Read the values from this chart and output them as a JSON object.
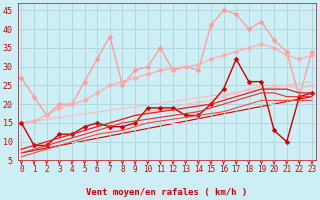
{
  "x": [
    0,
    1,
    2,
    3,
    4,
    5,
    6,
    7,
    8,
    9,
    10,
    11,
    12,
    13,
    14,
    15,
    16,
    17,
    18,
    19,
    20,
    21,
    22,
    23
  ],
  "series": [
    {
      "label": "rafales_jagged",
      "y": [
        27,
        22,
        17,
        20,
        20,
        26,
        32,
        38,
        25,
        29,
        30,
        35,
        29,
        30,
        29,
        41,
        45,
        44,
        40,
        42,
        37,
        34,
        22,
        34
      ],
      "color": "#ff9999",
      "alpha": 1.0,
      "lw": 0.9,
      "marker": "D",
      "ms": 2.5,
      "zorder": 2
    },
    {
      "label": "rafales_trend_upper",
      "y": [
        15,
        15.5,
        17,
        19,
        20,
        21,
        23,
        25,
        26,
        27,
        28,
        29,
        29.5,
        30,
        30.5,
        32,
        33,
        34,
        35,
        36,
        35,
        33,
        32,
        33
      ],
      "color": "#ffaaaa",
      "alpha": 1.0,
      "lw": 0.9,
      "marker": "D",
      "ms": 2.5,
      "zorder": 2
    },
    {
      "label": "rafales_trend_lower",
      "y": [
        8,
        9,
        10,
        11,
        12,
        13,
        14,
        15,
        16,
        17,
        18,
        18.5,
        19,
        20,
        20.5,
        21,
        22,
        23,
        24,
        25,
        25,
        25,
        24,
        25
      ],
      "color": "#ffbbbb",
      "alpha": 1.0,
      "lw": 0.8,
      "marker": "D",
      "ms": 2.0,
      "zorder": 2
    },
    {
      "label": "vent_jagged",
      "y": [
        15,
        9,
        9,
        12,
        12,
        14,
        15,
        14,
        14,
        15,
        19,
        19,
        19,
        17,
        17,
        20,
        24,
        32,
        26,
        26,
        13,
        10,
        22,
        23
      ],
      "color": "#cc0000",
      "alpha": 1.0,
      "lw": 1.0,
      "marker": "D",
      "ms": 2.5,
      "zorder": 3
    },
    {
      "label": "vent_trend1",
      "y": [
        8,
        9,
        10,
        11,
        12,
        13,
        14,
        15,
        16,
        17,
        17.5,
        18,
        18.5,
        19,
        19.5,
        20,
        21,
        22,
        23,
        24,
        24,
        24,
        23,
        23
      ],
      "color": "#dd2222",
      "alpha": 1.0,
      "lw": 0.9,
      "marker": null,
      "ms": 0,
      "zorder": 3
    },
    {
      "label": "vent_trend2",
      "y": [
        7,
        8,
        9,
        10,
        11,
        12,
        13,
        14,
        15,
        15.5,
        16,
        16.5,
        17,
        17.5,
        18,
        19,
        20,
        21,
        22,
        23,
        23,
        22,
        22,
        22
      ],
      "color": "#ee3333",
      "alpha": 1.0,
      "lw": 0.85,
      "marker": null,
      "ms": 0,
      "zorder": 3
    },
    {
      "label": "vent_trend3",
      "y": [
        6,
        7,
        8,
        9,
        10,
        11,
        12,
        12.5,
        13,
        14,
        15,
        15.5,
        16,
        16.5,
        17,
        17.5,
        18,
        19,
        20,
        21,
        21,
        21,
        21,
        21
      ],
      "color": "#ff4444",
      "alpha": 1.0,
      "lw": 0.8,
      "marker": null,
      "ms": 0,
      "zorder": 3
    }
  ],
  "diag_lines": [
    {
      "x0": 0,
      "y0": 15,
      "x1": 23,
      "y1": 26,
      "color": "#ffbbbb",
      "lw": 0.8,
      "alpha": 1.0
    },
    {
      "x0": 0,
      "y0": 7,
      "x1": 23,
      "y1": 22,
      "color": "#cc0000",
      "lw": 0.8,
      "alpha": 1.0
    }
  ],
  "xlabel": "Vent moyen/en rafales ( km/h )",
  "xlim": [
    -0.3,
    23.3
  ],
  "ylim": [
    5,
    47
  ],
  "yticks": [
    5,
    10,
    15,
    20,
    25,
    30,
    35,
    40,
    45
  ],
  "xticks": [
    0,
    1,
    2,
    3,
    4,
    5,
    6,
    7,
    8,
    9,
    10,
    11,
    12,
    13,
    14,
    15,
    16,
    17,
    18,
    19,
    20,
    21,
    22,
    23
  ],
  "bg_color": "#cdeef4",
  "grid_color": "#b0d8dd",
  "tick_color": "#cc0000",
  "xlabel_color": "#cc0000",
  "arrow_color": "#cc0000",
  "spine_color": "#cc0000"
}
